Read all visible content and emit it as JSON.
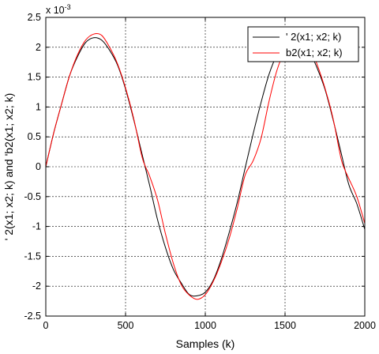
{
  "chart_data": {
    "type": "line",
    "title": "",
    "xlabel": "Samples (k)",
    "ylabel": "' 2(x1; x2; k) and 'b2(x1; x2; k)",
    "xlim": [
      0,
      2000
    ],
    "ylim": [
      -2.5,
      2.5
    ],
    "x_ticks": [
      "0",
      "500",
      "1000",
      "1500",
      "2000"
    ],
    "y_ticks": [
      "-2.5",
      "-2",
      "-1.5",
      "-1",
      "-0.5",
      "0",
      "0.5",
      "1",
      "1.5",
      "2",
      "2.5"
    ],
    "y_exponent": {
      "base": "x 10",
      "power": "-3"
    },
    "grid": true,
    "legend_position": "top-right",
    "series": [
      {
        "name": "' 2(x1; x2; k)",
        "color": "#000000",
        "x": [
          0,
          50,
          100,
          150,
          200,
          250,
          300,
          350,
          400,
          450,
          500,
          550,
          600,
          650,
          700,
          750,
          800,
          850,
          900,
          950,
          1000,
          1050,
          1100,
          1150,
          1200,
          1250,
          1300,
          1350,
          1400,
          1450,
          1500,
          1550,
          1600,
          1650,
          1700,
          1750,
          1800,
          1850,
          1900,
          1950,
          2000
        ],
        "values": [
          0.0,
          0.57,
          1.06,
          1.53,
          1.85,
          2.08,
          2.16,
          2.12,
          1.95,
          1.7,
          1.3,
          0.8,
          0.25,
          -0.3,
          -0.88,
          -1.35,
          -1.72,
          -1.95,
          -2.14,
          -2.16,
          -2.1,
          -1.9,
          -1.55,
          -1.1,
          -0.6,
          -0.02,
          0.55,
          1.08,
          1.55,
          1.88,
          2.08,
          2.16,
          2.12,
          1.95,
          1.66,
          1.3,
          0.8,
          0.25,
          -0.3,
          -0.62,
          -1.05
        ]
      },
      {
        "name": "b2(x1; x2; k)",
        "color": "#ff0000",
        "x": [
          0,
          50,
          100,
          150,
          200,
          250,
          300,
          350,
          400,
          450,
          500,
          550,
          600,
          625,
          650,
          700,
          750,
          800,
          850,
          900,
          950,
          1000,
          1050,
          1100,
          1150,
          1200,
          1250,
          1300,
          1350,
          1400,
          1450,
          1500,
          1550,
          1600,
          1650,
          1700,
          1750,
          1800,
          1850,
          1875,
          1900,
          1950,
          2000
        ],
        "values": [
          0.0,
          0.57,
          1.06,
          1.53,
          1.88,
          2.12,
          2.22,
          2.2,
          2.0,
          1.72,
          1.32,
          0.82,
          0.2,
          0.0,
          -0.15,
          -0.55,
          -1.12,
          -1.62,
          -1.98,
          -2.15,
          -2.22,
          -2.14,
          -1.92,
          -1.6,
          -1.2,
          -0.7,
          -0.14,
          0.1,
          0.48,
          1.1,
          1.62,
          1.95,
          2.15,
          2.2,
          2.06,
          1.72,
          1.32,
          0.82,
          0.15,
          -0.05,
          -0.2,
          -0.5,
          -0.95
        ]
      }
    ]
  }
}
